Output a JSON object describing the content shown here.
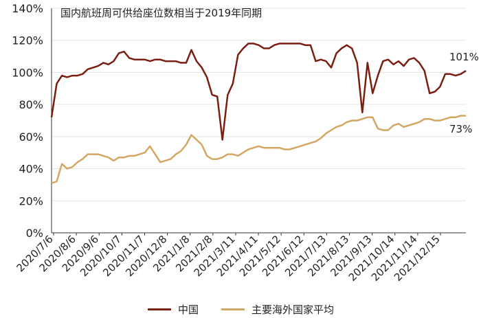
{
  "chart_data": {
    "type": "line",
    "title": "国内航班周可供给座位数相当于2019年同期",
    "ylim": [
      0,
      140
    ],
    "y_ticks": [
      "0%",
      "20%",
      "40%",
      "60%",
      "80%",
      "100%",
      "120%",
      "140%"
    ],
    "x_ticks": [
      "2020/7/6",
      "2020/8/6",
      "2020/9/6",
      "2020/10/7",
      "2020/11/7",
      "2020/12/8",
      "2021/1/8",
      "2021/2/8",
      "2021/3/11",
      "2021/4/11",
      "2021/5/12",
      "2021/6/12",
      "2021/7/13",
      "2021/8/13",
      "2021/9/13",
      "2021/10/14",
      "2021/11/14",
      "2021/12/15"
    ],
    "end_labels": [
      "101%",
      "73%"
    ],
    "colors": {
      "china": "#7B1E12",
      "overseas": "#D4A663"
    },
    "series": [
      {
        "name": "中国",
        "values": [
          72,
          93,
          98,
          97,
          98,
          98,
          99,
          102,
          103,
          104,
          106,
          105,
          107,
          112,
          113,
          109,
          108,
          108,
          108,
          107,
          108,
          108,
          107,
          107,
          107,
          106,
          106,
          114,
          107,
          103,
          97,
          86,
          85,
          58,
          86,
          93,
          111,
          115,
          118,
          118,
          117,
          115,
          115,
          117,
          118,
          118,
          118,
          118,
          118,
          117,
          117,
          107,
          108,
          107,
          103,
          112,
          115,
          117,
          115,
          106,
          75,
          106,
          87,
          98,
          107,
          108,
          105,
          107,
          104,
          108,
          109,
          106,
          101,
          87,
          88,
          91,
          99,
          99,
          98,
          99,
          101
        ]
      },
      {
        "name": "主要海外国家平均",
        "values": [
          31,
          32,
          43,
          40,
          41,
          44,
          46,
          49,
          49,
          49,
          48,
          47,
          45,
          47,
          47,
          48,
          48,
          49,
          50,
          54,
          49,
          44,
          45,
          46,
          49,
          51,
          55,
          61,
          58,
          55,
          48,
          46,
          46,
          47,
          49,
          49,
          48,
          50,
          52,
          53,
          54,
          53,
          53,
          53,
          53,
          52,
          52,
          53,
          54,
          55,
          56,
          57,
          59,
          62,
          64,
          66,
          67,
          69,
          70,
          70,
          71,
          72,
          72,
          65,
          64,
          64,
          67,
          68,
          66,
          67,
          68,
          69,
          71,
          71,
          70,
          70,
          71,
          72,
          72,
          73,
          73
        ]
      }
    ]
  }
}
